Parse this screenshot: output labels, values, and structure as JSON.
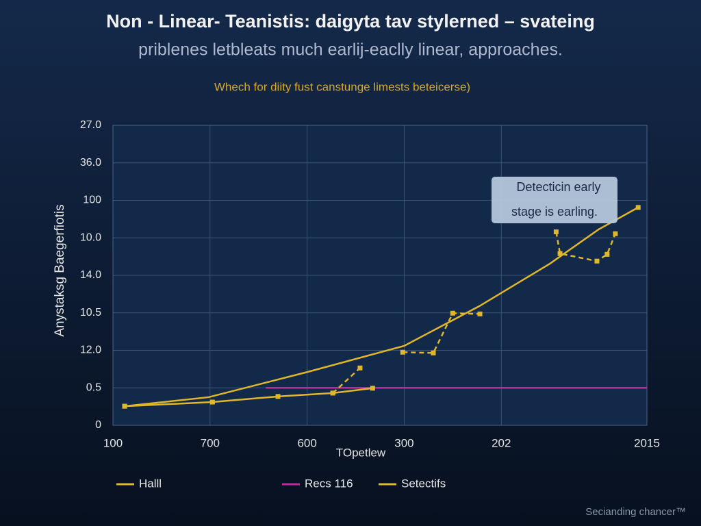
{
  "chart_data": {
    "type": "line",
    "title": "Non - Linear- Teanistis: daigyta tav stylerned – svateing",
    "subtitle": "priblenes letbleats much earlij-eaclly linear, approaches.",
    "note": "Whech for diity fust canstunge limests beteicerse)",
    "xlabel": "TOpetlew",
    "ylabel": "Anystaksg Baegerfiotis",
    "annotation": [
      "Detecticin early",
      "stage is earling."
    ],
    "footer": "Secianding chancer™",
    "xlim": [
      0,
      11
    ],
    "xticks": [
      {
        "value": 0,
        "label": "100"
      },
      {
        "value": 2,
        "label": "700"
      },
      {
        "value": 4,
        "label": "600"
      },
      {
        "value": 6,
        "label": "300"
      },
      {
        "value": 8,
        "label": "202"
      },
      {
        "value": 11,
        "label": "2015"
      }
    ],
    "ylim": [
      0,
      8
    ],
    "yticks": [
      0,
      {
        "value": 1,
        "label": "0.5"
      },
      {
        "value": 2,
        "label": "12.0"
      },
      {
        "value": 3,
        "label": "10.5"
      },
      {
        "value": 4,
        "label": "14.0"
      },
      {
        "value": 5,
        "label": "10.0"
      },
      {
        "value": 6,
        "label": "100"
      },
      {
        "value": 7,
        "label": "36.0"
      },
      {
        "value": 8,
        "label": "27.0"
      }
    ],
    "grid": true,
    "series": [
      {
        "name": "Halll",
        "color": "#e0b72a",
        "dash": false,
        "markers": true,
        "x": [
          0.24,
          10.82
        ],
        "values": [
          0.51,
          5.81
        ],
        "curve_x": [
          0.24,
          1.97,
          4.0,
          6.0,
          7.55,
          9.0,
          10.0,
          10.82
        ],
        "curve_values": [
          0.51,
          0.75,
          1.42,
          2.12,
          3.18,
          4.31,
          5.22,
          5.81
        ]
      },
      {
        "name": "Recs 116",
        "color": "#c0289a",
        "dash": false,
        "markers": false,
        "x": [
          3.15,
          11
        ],
        "values": [
          1.0,
          1.0
        ]
      },
      {
        "name": "Setectifs",
        "color": "#e0b72a",
        "dash": true,
        "markers": true,
        "x": [
          4.53,
          5.09,
          null,
          5.97,
          6.6,
          7.0,
          7.56,
          null,
          9.13,
          9.21,
          9.97,
          10.18,
          10.35
        ],
        "values": [
          0.86,
          1.53,
          null,
          1.95,
          1.93,
          2.99,
          2.97,
          null,
          5.16,
          4.58,
          4.38,
          4.56,
          5.11
        ]
      },
      {
        "color": "#e0b72a",
        "dash": false,
        "markers": true,
        "x": [
          0.24,
          2.05,
          3.4,
          4.53,
          5.35
        ],
        "values": [
          0.51,
          0.62,
          0.77,
          0.86,
          0.99
        ]
      }
    ]
  }
}
